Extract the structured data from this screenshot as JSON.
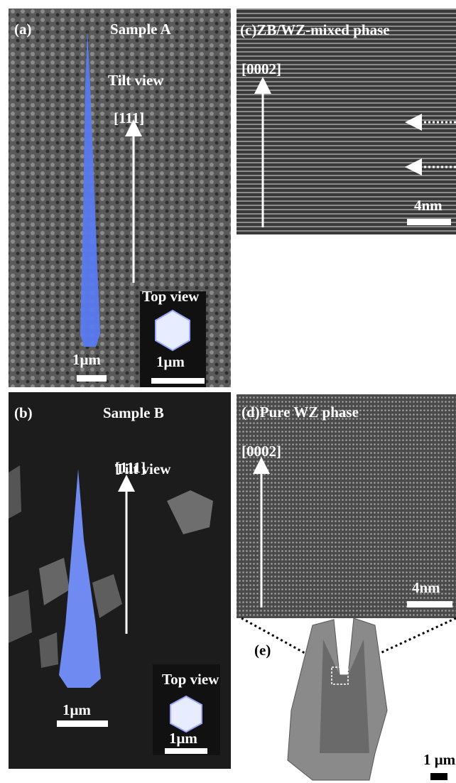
{
  "panels": {
    "a": {
      "label": "(a)",
      "title": "Sample A",
      "view": "Tilt view",
      "direction": "[111]",
      "inset_title": "Top view",
      "scale_bar": "1μm",
      "inset_scale_bar": "1μm"
    },
    "b": {
      "label": "(b)",
      "title": "Sample B",
      "view": "Tilt view",
      "direction": "[111]",
      "inset_title": "Top view",
      "scale_bar": "1μm",
      "inset_scale_bar": "1μm"
    },
    "c": {
      "label": "(c)ZB/WZ-mixed phase",
      "direction": "[0002]",
      "scale_bar": "4nm"
    },
    "d": {
      "label": "(d)Pure WZ phase",
      "direction": "[0002]",
      "scale_bar": "4nm"
    },
    "e": {
      "label": "(e)",
      "scale_bar": "1 μm"
    }
  }
}
